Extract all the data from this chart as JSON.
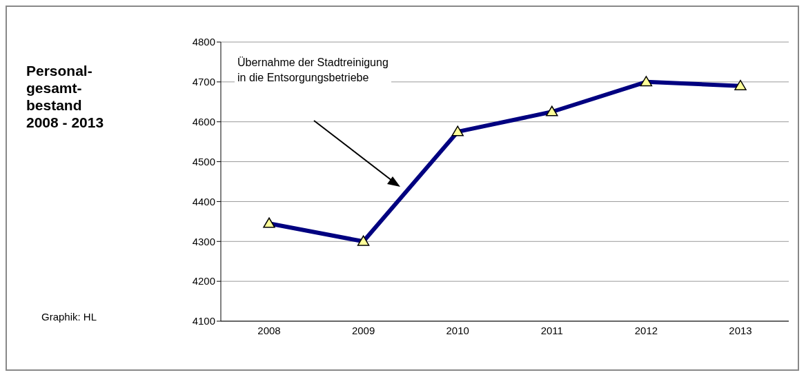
{
  "chart_data": {
    "type": "line",
    "title": "Personal-\ngesamt-\nbestand\n2008 - 2013",
    "categories": [
      "2008",
      "2009",
      "2010",
      "2011",
      "2012",
      "2013"
    ],
    "series": [
      {
        "color": "#000080",
        "values": [
          4345,
          4300,
          4575,
          4625,
          4700,
          4690
        ]
      }
    ],
    "ylim": [
      4100,
      4800
    ],
    "yticks": [
      4100,
      4200,
      4300,
      4400,
      4500,
      4600,
      4700,
      4800
    ],
    "grid": "y",
    "marker": "triangle",
    "line_style": "solid",
    "legend": false,
    "annotations": [
      "Übernahme der Stadtreinigung\nin die Entsorgungsbetriebe",
      "Graphik: HL"
    ]
  }
}
